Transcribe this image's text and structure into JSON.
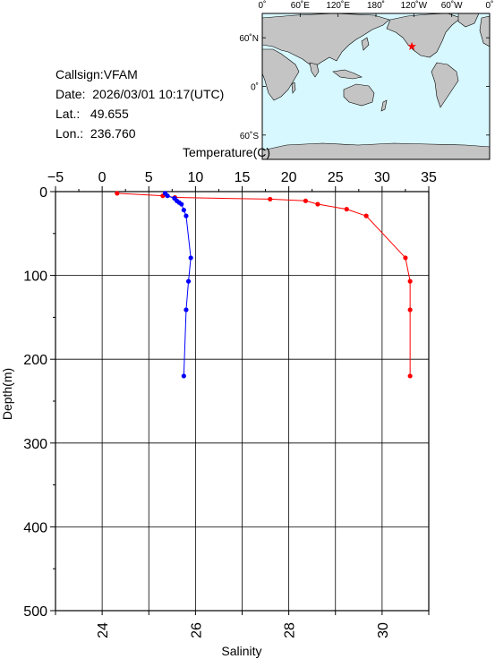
{
  "station": {
    "callsign": "Callsign:VFAM",
    "date": "Date:  2026/03/01 10:17(UTC)",
    "lat": "Lat.:   49.655",
    "lon": "Lon.:  236.760"
  },
  "map": {
    "top_labels": [
      "0˚",
      "60˚E",
      "120˚E",
      "180˚",
      "120˚W",
      "60˚W",
      "0˚"
    ],
    "left_labels": [
      "60˚N",
      "0˚",
      "60˚S"
    ],
    "ocean_color": "#d8f8ff",
    "land_color": "#c4c4c4",
    "marker_color": "#ff0000",
    "marker_icon": "star-icon",
    "marker_lon": 236.76,
    "marker_lat": 49.655
  },
  "chart_data": {
    "type": "line",
    "ylabel": "Depth(m)",
    "ylim": [
      500,
      0
    ],
    "yticks": [
      "0",
      "100",
      "200",
      "300",
      "400",
      "500"
    ],
    "grid": true,
    "temperature_axis": {
      "label": "Temperature(C)",
      "position": "top",
      "xlim": [
        -5,
        35
      ],
      "ticks": [
        "−5",
        "0",
        "5",
        "10",
        "15",
        "20",
        "25",
        "30",
        "35"
      ]
    },
    "salinity_axis": {
      "label": "Salinity",
      "position": "bottom",
      "xlim": [
        23,
        31
      ],
      "ticks": [
        "24",
        "26",
        "28",
        "30"
      ]
    },
    "series": [
      {
        "axis": "temperature",
        "color": "#ff0000",
        "points": [
          {
            "x": 1.6,
            "y": 2
          },
          {
            "x": 6.5,
            "y": 5
          },
          {
            "x": 7.8,
            "y": 7
          },
          {
            "x": 18.0,
            "y": 9
          },
          {
            "x": 21.8,
            "y": 11
          },
          {
            "x": 23.1,
            "y": 15
          },
          {
            "x": 26.2,
            "y": 21
          },
          {
            "x": 28.3,
            "y": 29
          },
          {
            "x": 32.5,
            "y": 79
          },
          {
            "x": 33.0,
            "y": 107
          },
          {
            "x": 33.0,
            "y": 141
          },
          {
            "x": 33.0,
            "y": 220
          }
        ]
      },
      {
        "axis": "salinity",
        "color": "#0000ff",
        "points": [
          {
            "x": 25.35,
            "y": 2
          },
          {
            "x": 25.4,
            "y": 5
          },
          {
            "x": 25.55,
            "y": 8
          },
          {
            "x": 25.6,
            "y": 11
          },
          {
            "x": 25.65,
            "y": 13
          },
          {
            "x": 25.7,
            "y": 15
          },
          {
            "x": 25.75,
            "y": 22
          },
          {
            "x": 25.8,
            "y": 29
          },
          {
            "x": 25.9,
            "y": 79
          },
          {
            "x": 25.85,
            "y": 107
          },
          {
            "x": 25.8,
            "y": 141
          },
          {
            "x": 25.75,
            "y": 220
          }
        ]
      }
    ]
  }
}
